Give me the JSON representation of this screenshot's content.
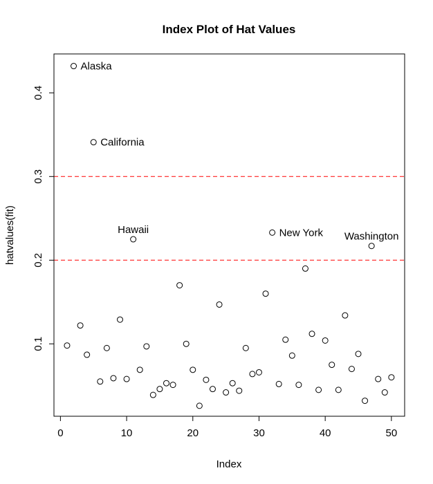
{
  "chart_data": {
    "type": "scatter",
    "title": "Index Plot of Hat Values",
    "xlabel": "Index",
    "ylabel": "hatvalues(fit)",
    "xlim": [
      -0.98,
      52
    ],
    "ylim": [
      0.0135,
      0.4465
    ],
    "xticks": [
      0,
      10,
      20,
      30,
      40,
      50
    ],
    "yticks": [
      0.1,
      0.2,
      0.3,
      0.4
    ],
    "reference_lines": [
      0.2,
      0.3
    ],
    "reference_line_color": "#ff0000",
    "grid": false,
    "x": [
      1,
      2,
      3,
      4,
      5,
      6,
      7,
      8,
      9,
      10,
      11,
      12,
      13,
      14,
      15,
      16,
      17,
      18,
      19,
      20,
      21,
      22,
      23,
      24,
      25,
      26,
      27,
      28,
      29,
      30,
      31,
      32,
      33,
      34,
      35,
      36,
      37,
      38,
      39,
      40,
      41,
      42,
      43,
      44,
      45,
      46,
      47,
      48,
      49,
      50
    ],
    "y": [
      0.098,
      0.432,
      0.122,
      0.087,
      0.341,
      0.055,
      0.095,
      0.059,
      0.129,
      0.058,
      0.225,
      0.069,
      0.097,
      0.039,
      0.046,
      0.053,
      0.051,
      0.17,
      0.1,
      0.069,
      0.026,
      0.057,
      0.046,
      0.147,
      0.042,
      0.053,
      0.044,
      0.095,
      0.064,
      0.066,
      0.16,
      0.233,
      0.052,
      0.105,
      0.086,
      0.051,
      0.19,
      0.112,
      0.045,
      0.104,
      0.075,
      0.045,
      0.134,
      0.07,
      0.088,
      0.032,
      0.217,
      0.058,
      0.042,
      0.06
    ],
    "annotations": [
      {
        "index": 2,
        "text": "Alaska",
        "pos": "right"
      },
      {
        "index": 5,
        "text": "California",
        "pos": "right"
      },
      {
        "index": 11,
        "text": "Hawaii",
        "pos": "above"
      },
      {
        "index": 32,
        "text": "New York",
        "pos": "right"
      },
      {
        "index": 47,
        "text": "Washington",
        "pos": "above"
      }
    ]
  }
}
